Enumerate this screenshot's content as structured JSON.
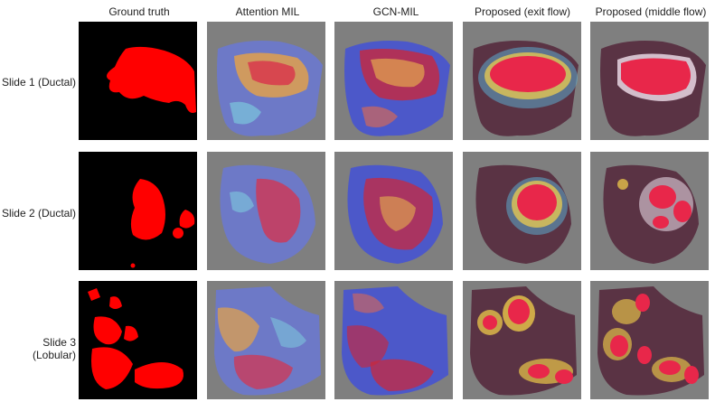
{
  "columns": [
    {
      "label": "Ground truth"
    },
    {
      "label": "Attention MIL"
    },
    {
      "label": "GCN-MIL"
    },
    {
      "label": "Proposed (exit flow)"
    },
    {
      "label": "Proposed (middle flow)"
    }
  ],
  "rows": [
    {
      "label": "Slide 1 (Ductal)"
    },
    {
      "label": "Slide 2 (Ductal)"
    },
    {
      "label": "Slide 3 (Lobular)"
    }
  ],
  "colors": {
    "gt_background": "#000000",
    "gt_region": "#ff0000",
    "tile_background": "#7f7f7f",
    "tissue": "#5a3344",
    "heat_high": "#e8274a",
    "heat_mid": "#f6d34a",
    "heat_low": "#5b6fd6"
  }
}
